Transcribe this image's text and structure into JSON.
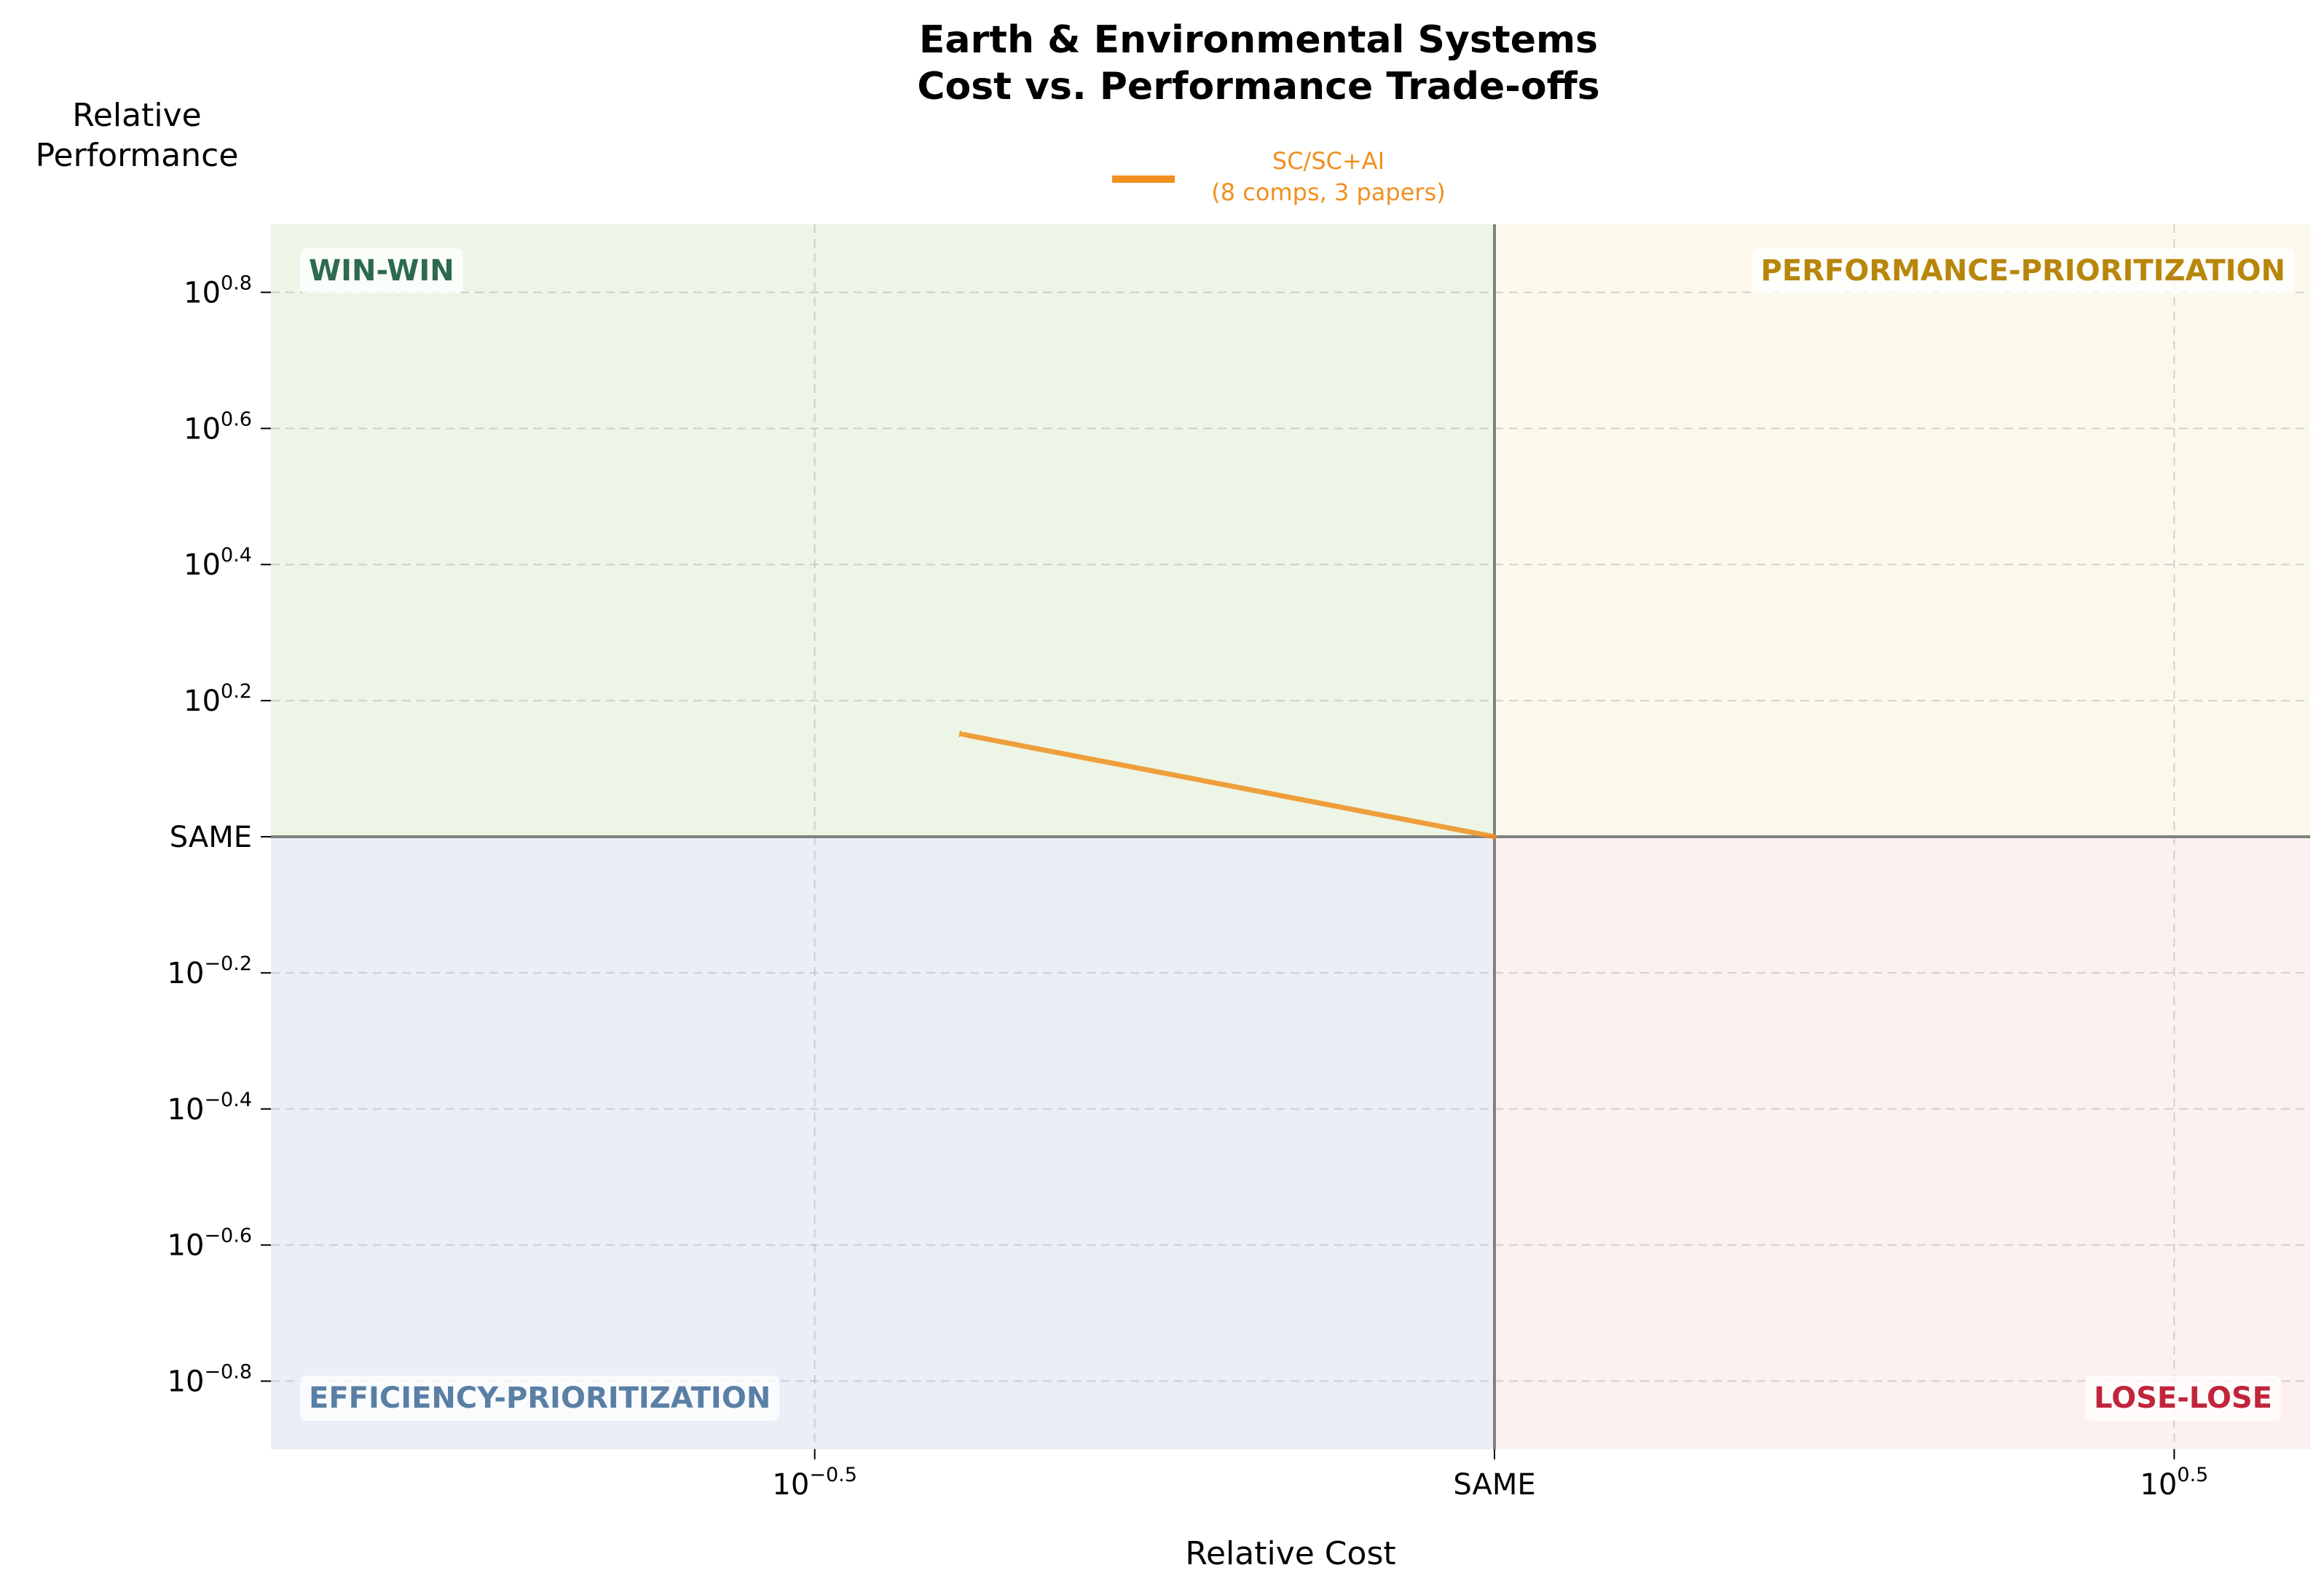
{
  "chart_data": {
    "type": "line",
    "title": [
      "Earth & Environmental Systems",
      "Cost vs. Performance Trade-offs"
    ],
    "xlabel": "Relative Cost",
    "ylabel": [
      "Relative",
      "Performance"
    ],
    "x_scale": "log",
    "y_scale": "log",
    "x_range_log10": [
      -0.9,
      0.6
    ],
    "y_range_log10": [
      -0.9,
      0.9
    ],
    "x_ticks": [
      {
        "log10": -0.5,
        "base": "10",
        "exp": "−0.5"
      },
      {
        "log10": 0,
        "label": "SAME"
      },
      {
        "log10": 0.5,
        "base": "10",
        "exp": "0.5"
      }
    ],
    "y_ticks": [
      {
        "log10": 0.8,
        "base": "10",
        "exp": "0.8"
      },
      {
        "log10": 0.6,
        "base": "10",
        "exp": "0.6"
      },
      {
        "log10": 0.4,
        "base": "10",
        "exp": "0.4"
      },
      {
        "log10": 0.2,
        "base": "10",
        "exp": "0.2"
      },
      {
        "log10": 0,
        "label": "SAME"
      },
      {
        "log10": -0.2,
        "base": "10",
        "exp": "−0.2"
      },
      {
        "log10": -0.4,
        "base": "10",
        "exp": "−0.4"
      },
      {
        "log10": -0.6,
        "base": "10",
        "exp": "−0.6"
      },
      {
        "log10": -0.8,
        "base": "10",
        "exp": "−0.8"
      }
    ],
    "grid": true,
    "legend_position": "top-center",
    "quadrants": {
      "top_left": {
        "label": "WIN-WIN",
        "fill": "#ecf5e6",
        "text_color": "#2d6a4f"
      },
      "top_right": {
        "label": "PERFORMANCE-PRIORITIZATION",
        "fill": "#fcf9ec",
        "text_color": "#b8860b"
      },
      "bottom_left": {
        "label": "EFFICIENCY-PRIORITIZATION",
        "fill": "#e9eef7",
        "text_color": "#5a7fa5"
      },
      "bottom_right": {
        "label": "LOSE-LOSE",
        "fill": "#fdf0f0",
        "text_color": "#c0253b"
      }
    },
    "series": [
      {
        "name": "SC/SC+AI",
        "name_detail": "(8 comps, 3 papers)",
        "color": "#f0901f",
        "from_log10": {
          "x": 0,
          "y": 0
        },
        "to_log10": {
          "x": -0.39,
          "y": 0.15
        }
      }
    ]
  }
}
